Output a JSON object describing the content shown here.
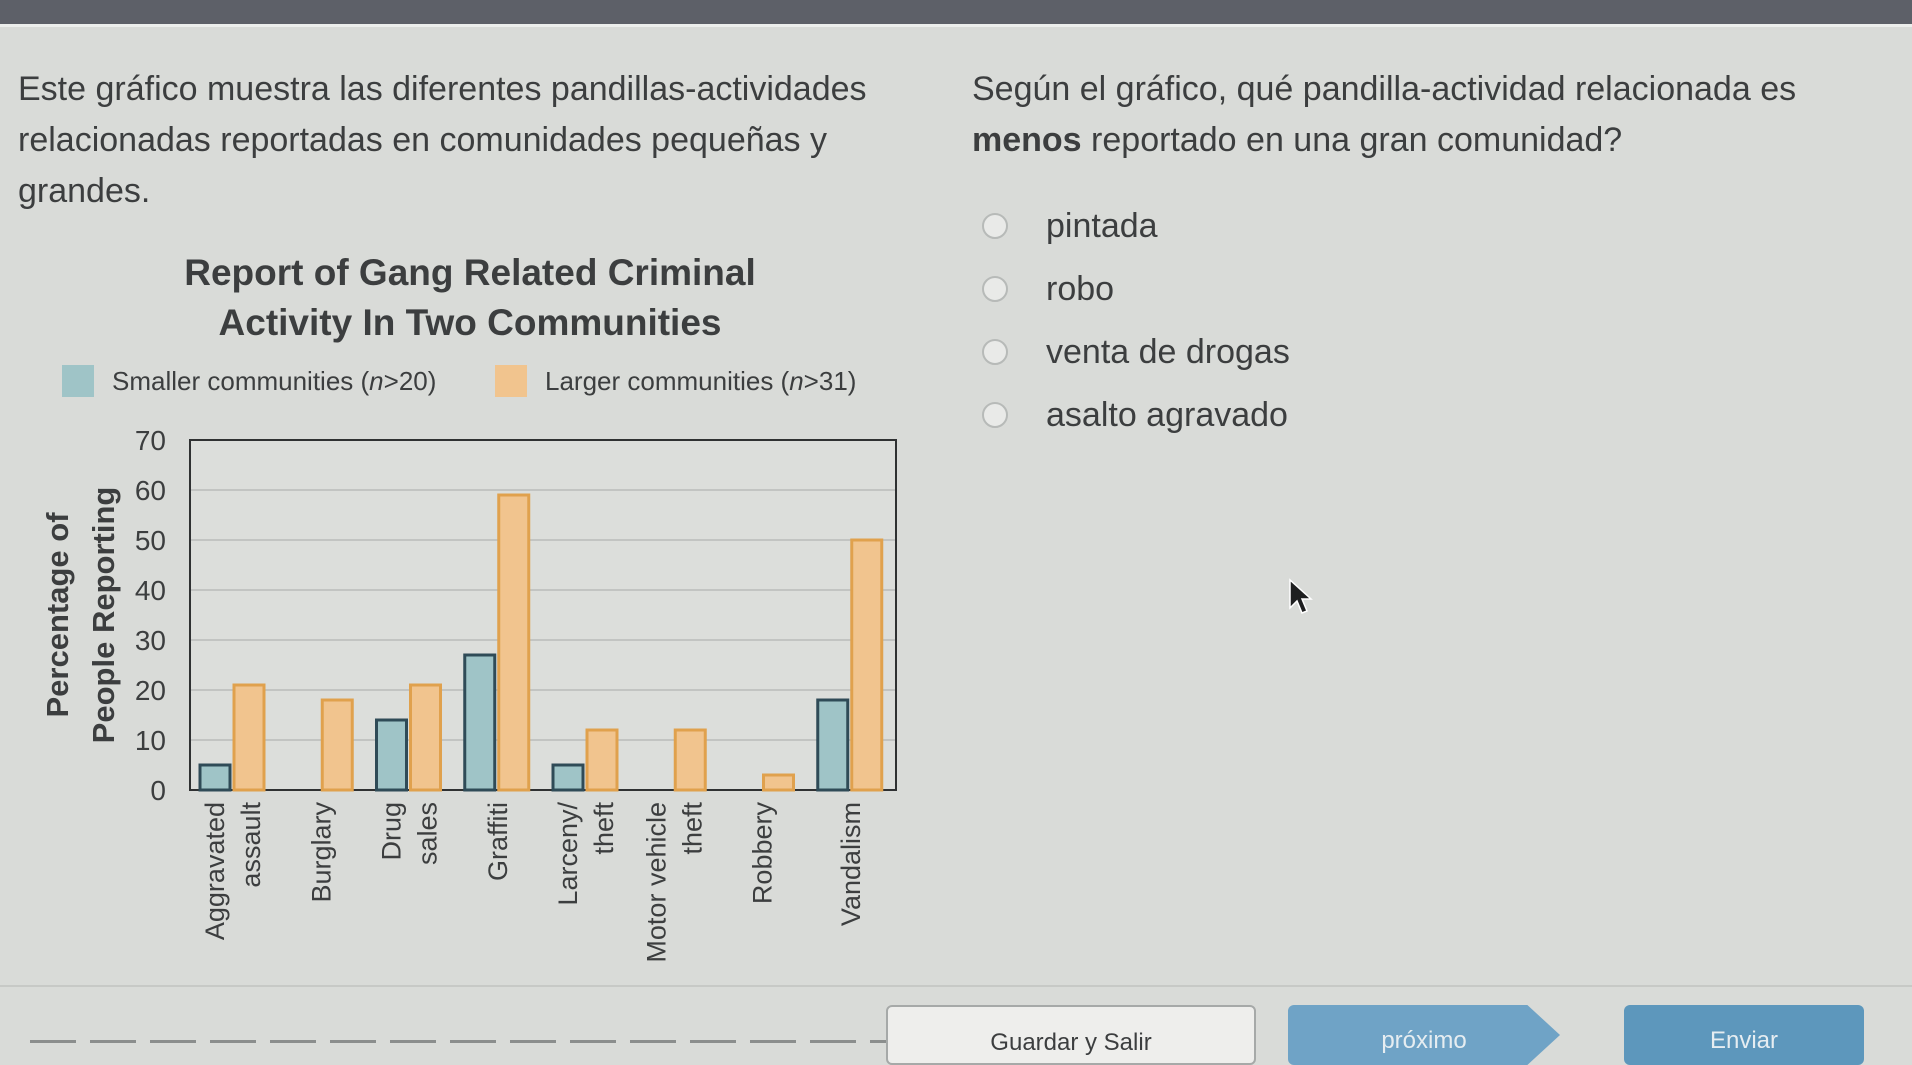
{
  "intro_text": "Este gráfico muestra las diferentes pandillas-actividades relacionadas reportadas en comunidades pequeñas y grandes.",
  "question": {
    "prefix": "Según el gráfico, qué pandilla-actividad relacionada es",
    "emphasis": "menos",
    "suffix": "reportado en una gran comunidad?"
  },
  "options": [
    {
      "label": "pintada",
      "selected": false
    },
    {
      "label": "robo",
      "selected": false
    },
    {
      "label": "venta de drogas",
      "selected": false
    },
    {
      "label": "asalto agravado",
      "selected": false
    }
  ],
  "chart_title": "Report of Gang Related Criminal Activity In Two Communities",
  "chart_data": {
    "type": "bar",
    "title": "Report of Gang Related Criminal Activity In Two Communities",
    "xlabel": "",
    "ylabel_lines": [
      "Percentage of",
      "People Reporting"
    ],
    "ylim": [
      0,
      70
    ],
    "yticks": [
      0,
      10,
      20,
      30,
      40,
      50,
      60,
      70
    ],
    "grid": true,
    "legend_position": "top",
    "categories": [
      [
        "Aggravated",
        "assault"
      ],
      [
        "Burglary"
      ],
      [
        "Drug",
        "sales"
      ],
      [
        "Graffiti"
      ],
      [
        "Larceny/",
        "theft"
      ],
      [
        "Motor vehicle",
        "theft"
      ],
      [
        "Robbery"
      ],
      [
        "Vandalism"
      ]
    ],
    "series": [
      {
        "name": "Smaller communities (n>20)",
        "name_prefix": "Smaller communities (",
        "name_var": "n",
        "name_suffix": ">20)",
        "color": "#9fc4c7",
        "values": [
          5,
          0,
          14,
          27,
          5,
          0,
          0,
          18
        ]
      },
      {
        "name": "Larger communities (n>31)",
        "name_prefix": "Larger communities (",
        "name_var": "n",
        "name_suffix": ">31)",
        "color": "#f1c48e",
        "values": [
          21,
          18,
          21,
          59,
          12,
          12,
          3,
          50
        ]
      }
    ]
  },
  "buttons": {
    "save": "Guardar y Salir",
    "next": "próximo",
    "submit": "Enviar"
  },
  "colors": {
    "accent": "#5d97bc",
    "smaller_series": "#9fc4c7",
    "larger_series": "#f1c48e"
  }
}
